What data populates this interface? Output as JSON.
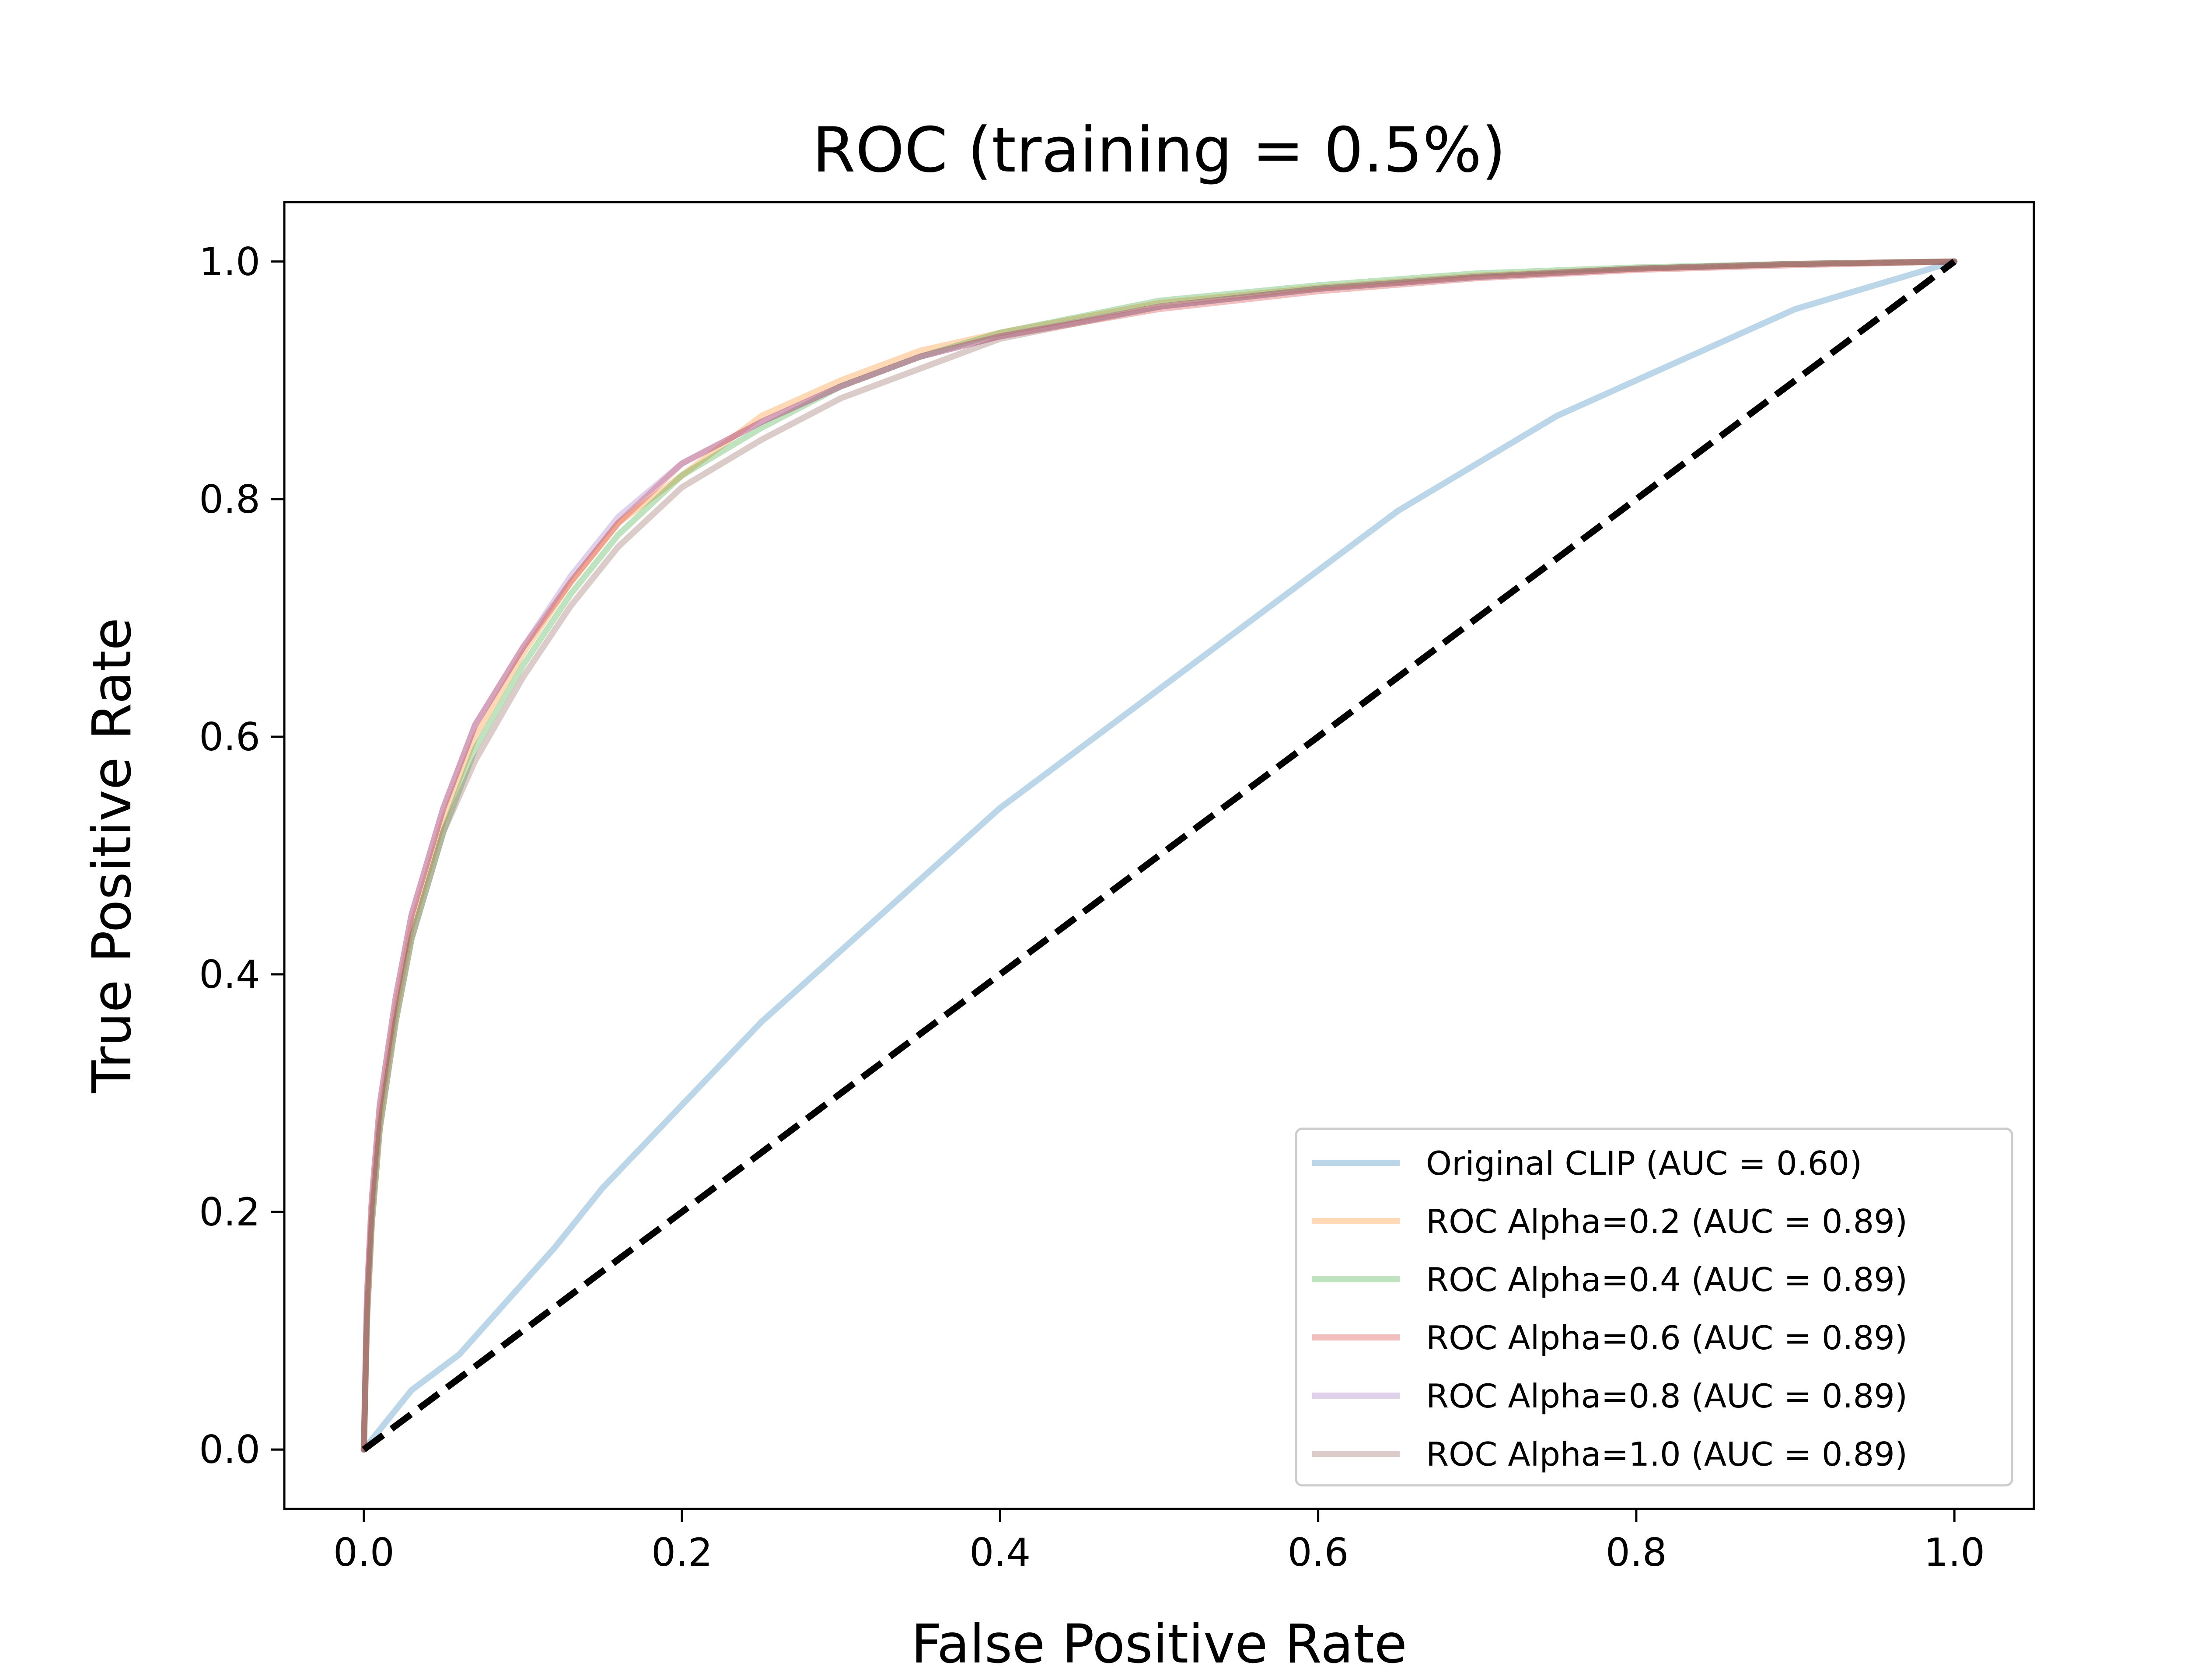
{
  "chart_data": {
    "type": "line",
    "title": "ROC (training = 0.5%)",
    "xlabel": "False Positive Rate",
    "ylabel": "True Positive Rate",
    "xlim": [
      -0.05,
      1.05
    ],
    "ylim": [
      -0.05,
      1.05
    ],
    "xticks": [
      0.0,
      0.2,
      0.4,
      0.6,
      0.8,
      1.0
    ],
    "yticks": [
      0.0,
      0.2,
      0.4,
      0.6,
      0.8,
      1.0
    ],
    "xtick_labels": [
      "0.0",
      "0.2",
      "0.4",
      "0.6",
      "0.8",
      "1.0"
    ],
    "ytick_labels": [
      "0.0",
      "0.2",
      "0.4",
      "0.6",
      "0.8",
      "1.0"
    ],
    "grid": false,
    "legend_position": "lower-right",
    "series": [
      {
        "name": "Original CLIP (AUC = 0.60)",
        "color": "#1f77b4",
        "alpha": 0.3,
        "x": [
          0,
          0.03,
          0.06,
          0.08,
          0.1,
          0.12,
          0.15,
          0.2,
          0.25,
          0.3,
          0.35,
          0.4,
          0.45,
          0.5,
          0.55,
          0.6,
          0.65,
          0.7,
          0.75,
          0.8,
          0.85,
          0.9,
          0.95,
          1.0
        ],
        "y": [
          0,
          0.05,
          0.08,
          0.11,
          0.14,
          0.17,
          0.22,
          0.29,
          0.36,
          0.42,
          0.48,
          0.54,
          0.59,
          0.64,
          0.69,
          0.74,
          0.79,
          0.83,
          0.87,
          0.9,
          0.93,
          0.96,
          0.98,
          1.0
        ]
      },
      {
        "name": "ROC Alpha=0.2 (AUC = 0.89)",
        "color": "#ff7f0e",
        "alpha": 0.3,
        "x": [
          0,
          0.002,
          0.005,
          0.01,
          0.02,
          0.03,
          0.05,
          0.07,
          0.1,
          0.13,
          0.16,
          0.2,
          0.25,
          0.3,
          0.35,
          0.4,
          0.5,
          0.6,
          0.7,
          0.8,
          0.9,
          1.0
        ],
        "y": [
          0,
          0.12,
          0.2,
          0.28,
          0.37,
          0.44,
          0.53,
          0.6,
          0.67,
          0.73,
          0.78,
          0.82,
          0.87,
          0.9,
          0.925,
          0.94,
          0.965,
          0.978,
          0.988,
          0.994,
          0.998,
          1.0
        ]
      },
      {
        "name": "ROC Alpha=0.4 (AUC = 0.89)",
        "color": "#2ca02c",
        "alpha": 0.3,
        "x": [
          0,
          0.002,
          0.005,
          0.01,
          0.02,
          0.03,
          0.05,
          0.07,
          0.1,
          0.13,
          0.16,
          0.2,
          0.25,
          0.3,
          0.35,
          0.4,
          0.5,
          0.6,
          0.7,
          0.8,
          0.9,
          1.0
        ],
        "y": [
          0,
          0.11,
          0.19,
          0.27,
          0.36,
          0.43,
          0.52,
          0.59,
          0.66,
          0.72,
          0.77,
          0.82,
          0.86,
          0.895,
          0.92,
          0.94,
          0.967,
          0.98,
          0.99,
          0.995,
          0.998,
          1.0
        ]
      },
      {
        "name": "ROC Alpha=0.6 (AUC = 0.89)",
        "color": "#d62728",
        "alpha": 0.3,
        "x": [
          0,
          0.002,
          0.005,
          0.01,
          0.02,
          0.03,
          0.05,
          0.07,
          0.1,
          0.13,
          0.16,
          0.2,
          0.25,
          0.3,
          0.35,
          0.4,
          0.5,
          0.6,
          0.7,
          0.8,
          0.9,
          1.0
        ],
        "y": [
          0,
          0.13,
          0.21,
          0.29,
          0.38,
          0.45,
          0.54,
          0.61,
          0.675,
          0.73,
          0.78,
          0.83,
          0.865,
          0.895,
          0.92,
          0.937,
          0.96,
          0.975,
          0.986,
          0.993,
          0.997,
          1.0
        ]
      },
      {
        "name": "ROC Alpha=0.8 (AUC = 0.89)",
        "color": "#9467bd",
        "alpha": 0.3,
        "x": [
          0,
          0.002,
          0.005,
          0.01,
          0.02,
          0.03,
          0.05,
          0.07,
          0.1,
          0.13,
          0.16,
          0.2,
          0.25,
          0.3,
          0.35,
          0.4,
          0.5,
          0.6,
          0.7,
          0.8,
          0.9,
          1.0
        ],
        "y": [
          0,
          0.13,
          0.21,
          0.29,
          0.38,
          0.45,
          0.54,
          0.61,
          0.675,
          0.735,
          0.785,
          0.83,
          0.865,
          0.895,
          0.92,
          0.937,
          0.962,
          0.977,
          0.987,
          0.994,
          0.998,
          1.0
        ]
      },
      {
        "name": "ROC Alpha=1.0 (AUC = 0.89)",
        "color": "#8c564b",
        "alpha": 0.3,
        "x": [
          0,
          0.002,
          0.005,
          0.01,
          0.02,
          0.03,
          0.05,
          0.07,
          0.1,
          0.13,
          0.16,
          0.2,
          0.25,
          0.3,
          0.35,
          0.4,
          0.5,
          0.6,
          0.7,
          0.8,
          0.9,
          1.0
        ],
        "y": [
          0,
          0.11,
          0.19,
          0.27,
          0.36,
          0.43,
          0.52,
          0.58,
          0.65,
          0.71,
          0.76,
          0.81,
          0.85,
          0.885,
          0.91,
          0.935,
          0.962,
          0.977,
          0.987,
          0.994,
          0.998,
          1.0
        ]
      }
    ],
    "reference_line": {
      "x": [
        0,
        1
      ],
      "y": [
        0,
        1
      ],
      "style": "dashed",
      "color": "#000000"
    }
  }
}
